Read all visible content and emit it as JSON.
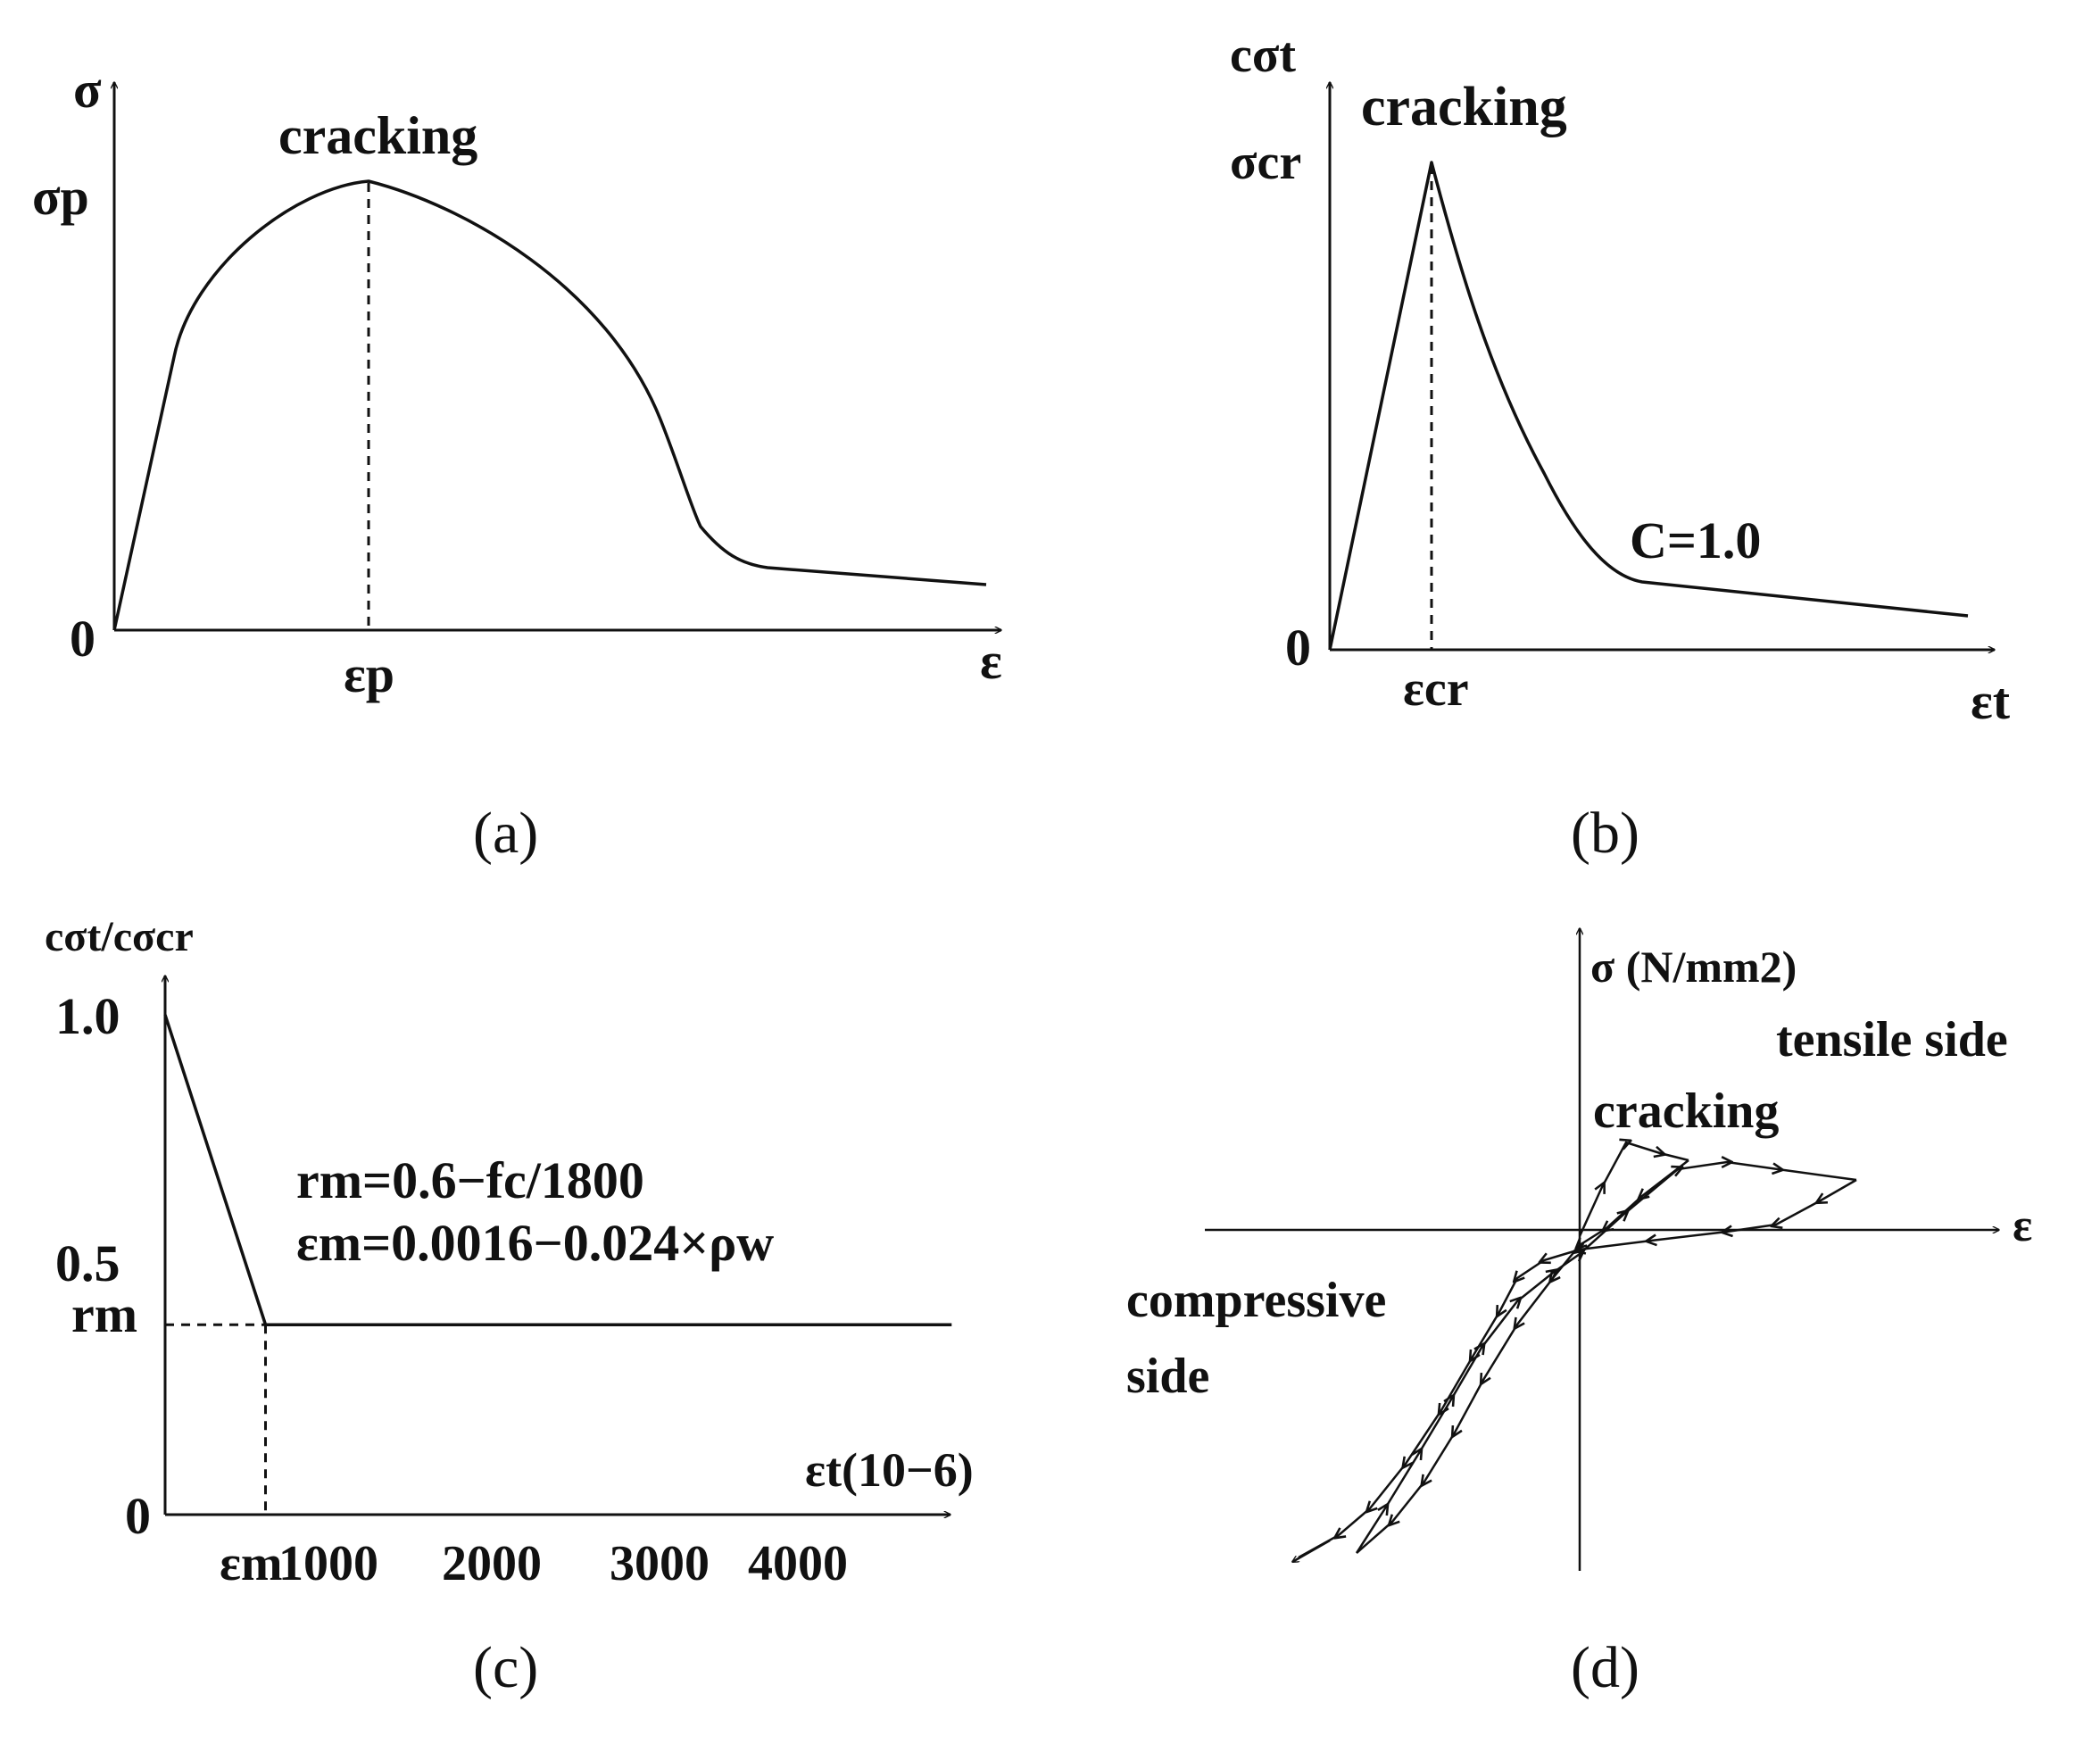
{
  "panels": {
    "a": {
      "caption": "(a)",
      "y_axis_label": "σ",
      "x_axis_label": "ε",
      "origin_label": "0",
      "peak_stress_label": "σp",
      "peak_strain_label": "εp",
      "annotation": "cracking"
    },
    "b": {
      "caption": "(b)",
      "y_axis_label": "cσt",
      "x_axis_label": "εt",
      "origin_label": "0",
      "peak_stress_label": "σcr",
      "peak_strain_label": "εcr",
      "annotation": "cracking",
      "parameter_label": "C=1.0"
    },
    "c": {
      "caption": "(c)",
      "y_axis_label": "cσt/cσcr",
      "x_axis_label": "εt(10−6)",
      "formula_1": "rm=0.6−fc/1800",
      "formula_2": "εm=0.0016−0.024×ρw",
      "y_ticks": [
        "1.0",
        "0.5",
        "rm",
        "0"
      ],
      "x_ticks": [
        "εm",
        "1000",
        "2000",
        "3000",
        "4000"
      ]
    },
    "d": {
      "caption": "(d)",
      "y_axis_label": "σ (N/mm2)",
      "x_axis_label": "ε",
      "tensile_label": "tensile side",
      "cracking_label": "cracking",
      "compressive_label_1": "compressive",
      "compressive_label_2": "side"
    }
  },
  "chart_data": {
    "type": "line",
    "title": "",
    "xlabel": "εt(10−6)",
    "ylabel": "cσt/cσcr",
    "ylim": [
      0,
      1.1
    ],
    "xlim": [
      0,
      4800
    ],
    "x": [
      0,
      600,
      4700
    ],
    "series": [
      {
        "values": [
          1.0,
          0.38,
          0.38
        ]
      }
    ]
  }
}
